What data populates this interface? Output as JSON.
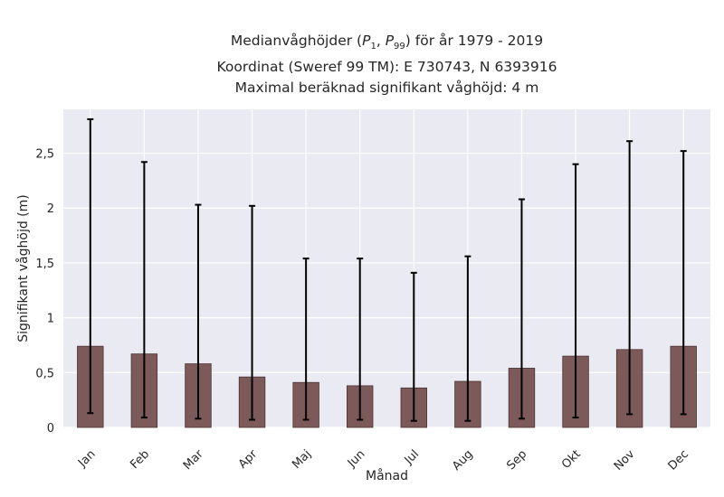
{
  "title": {
    "line1_prefix": "Medianvåghöjder (",
    "p1": "P",
    "p1_sub": "1",
    "sep": ", ",
    "p99": "P",
    "p99_sub": "99",
    "line1_suffix": ") för år 1979 - 2019",
    "line2": "Koordinat (Sweref 99 TM): E 730743, N 6393916",
    "line3": "Maximal beräknad signifikant våghöjd: 4 m"
  },
  "colors": {
    "plot_bg": "#eaeaf2",
    "grid": "#ffffff",
    "bar": "#7d5a5a",
    "bar_edge": "#4a3333",
    "errorbar": "#000000"
  },
  "chart_data": {
    "type": "bar",
    "xlabel": "Månad",
    "ylabel": "Signifikant våghöjd (m)",
    "ylim": [
      0,
      2.9
    ],
    "yticks": [
      0,
      0.5,
      1,
      1.5,
      2,
      2.5
    ],
    "ytick_labels": [
      "0",
      "0,5",
      "1",
      "1,5",
      "2",
      "2,5"
    ],
    "grid": true,
    "categories": [
      "Jan",
      "Feb",
      "Mar",
      "Apr",
      "Maj",
      "Jun",
      "Jul",
      "Aug",
      "Sep",
      "Okt",
      "Nov",
      "Dec"
    ],
    "series": [
      {
        "values": [
          0.74,
          0.67,
          0.58,
          0.46,
          0.41,
          0.38,
          0.36,
          0.42,
          0.54,
          0.65,
          0.71,
          0.74
        ],
        "p1": [
          0.13,
          0.09,
          0.08,
          0.07,
          0.07,
          0.07,
          0.06,
          0.06,
          0.08,
          0.09,
          0.12,
          0.12
        ],
        "p99": [
          2.81,
          2.42,
          2.03,
          2.02,
          1.54,
          1.54,
          1.41,
          1.56,
          2.08,
          2.4,
          2.61,
          2.52
        ]
      }
    ]
  }
}
